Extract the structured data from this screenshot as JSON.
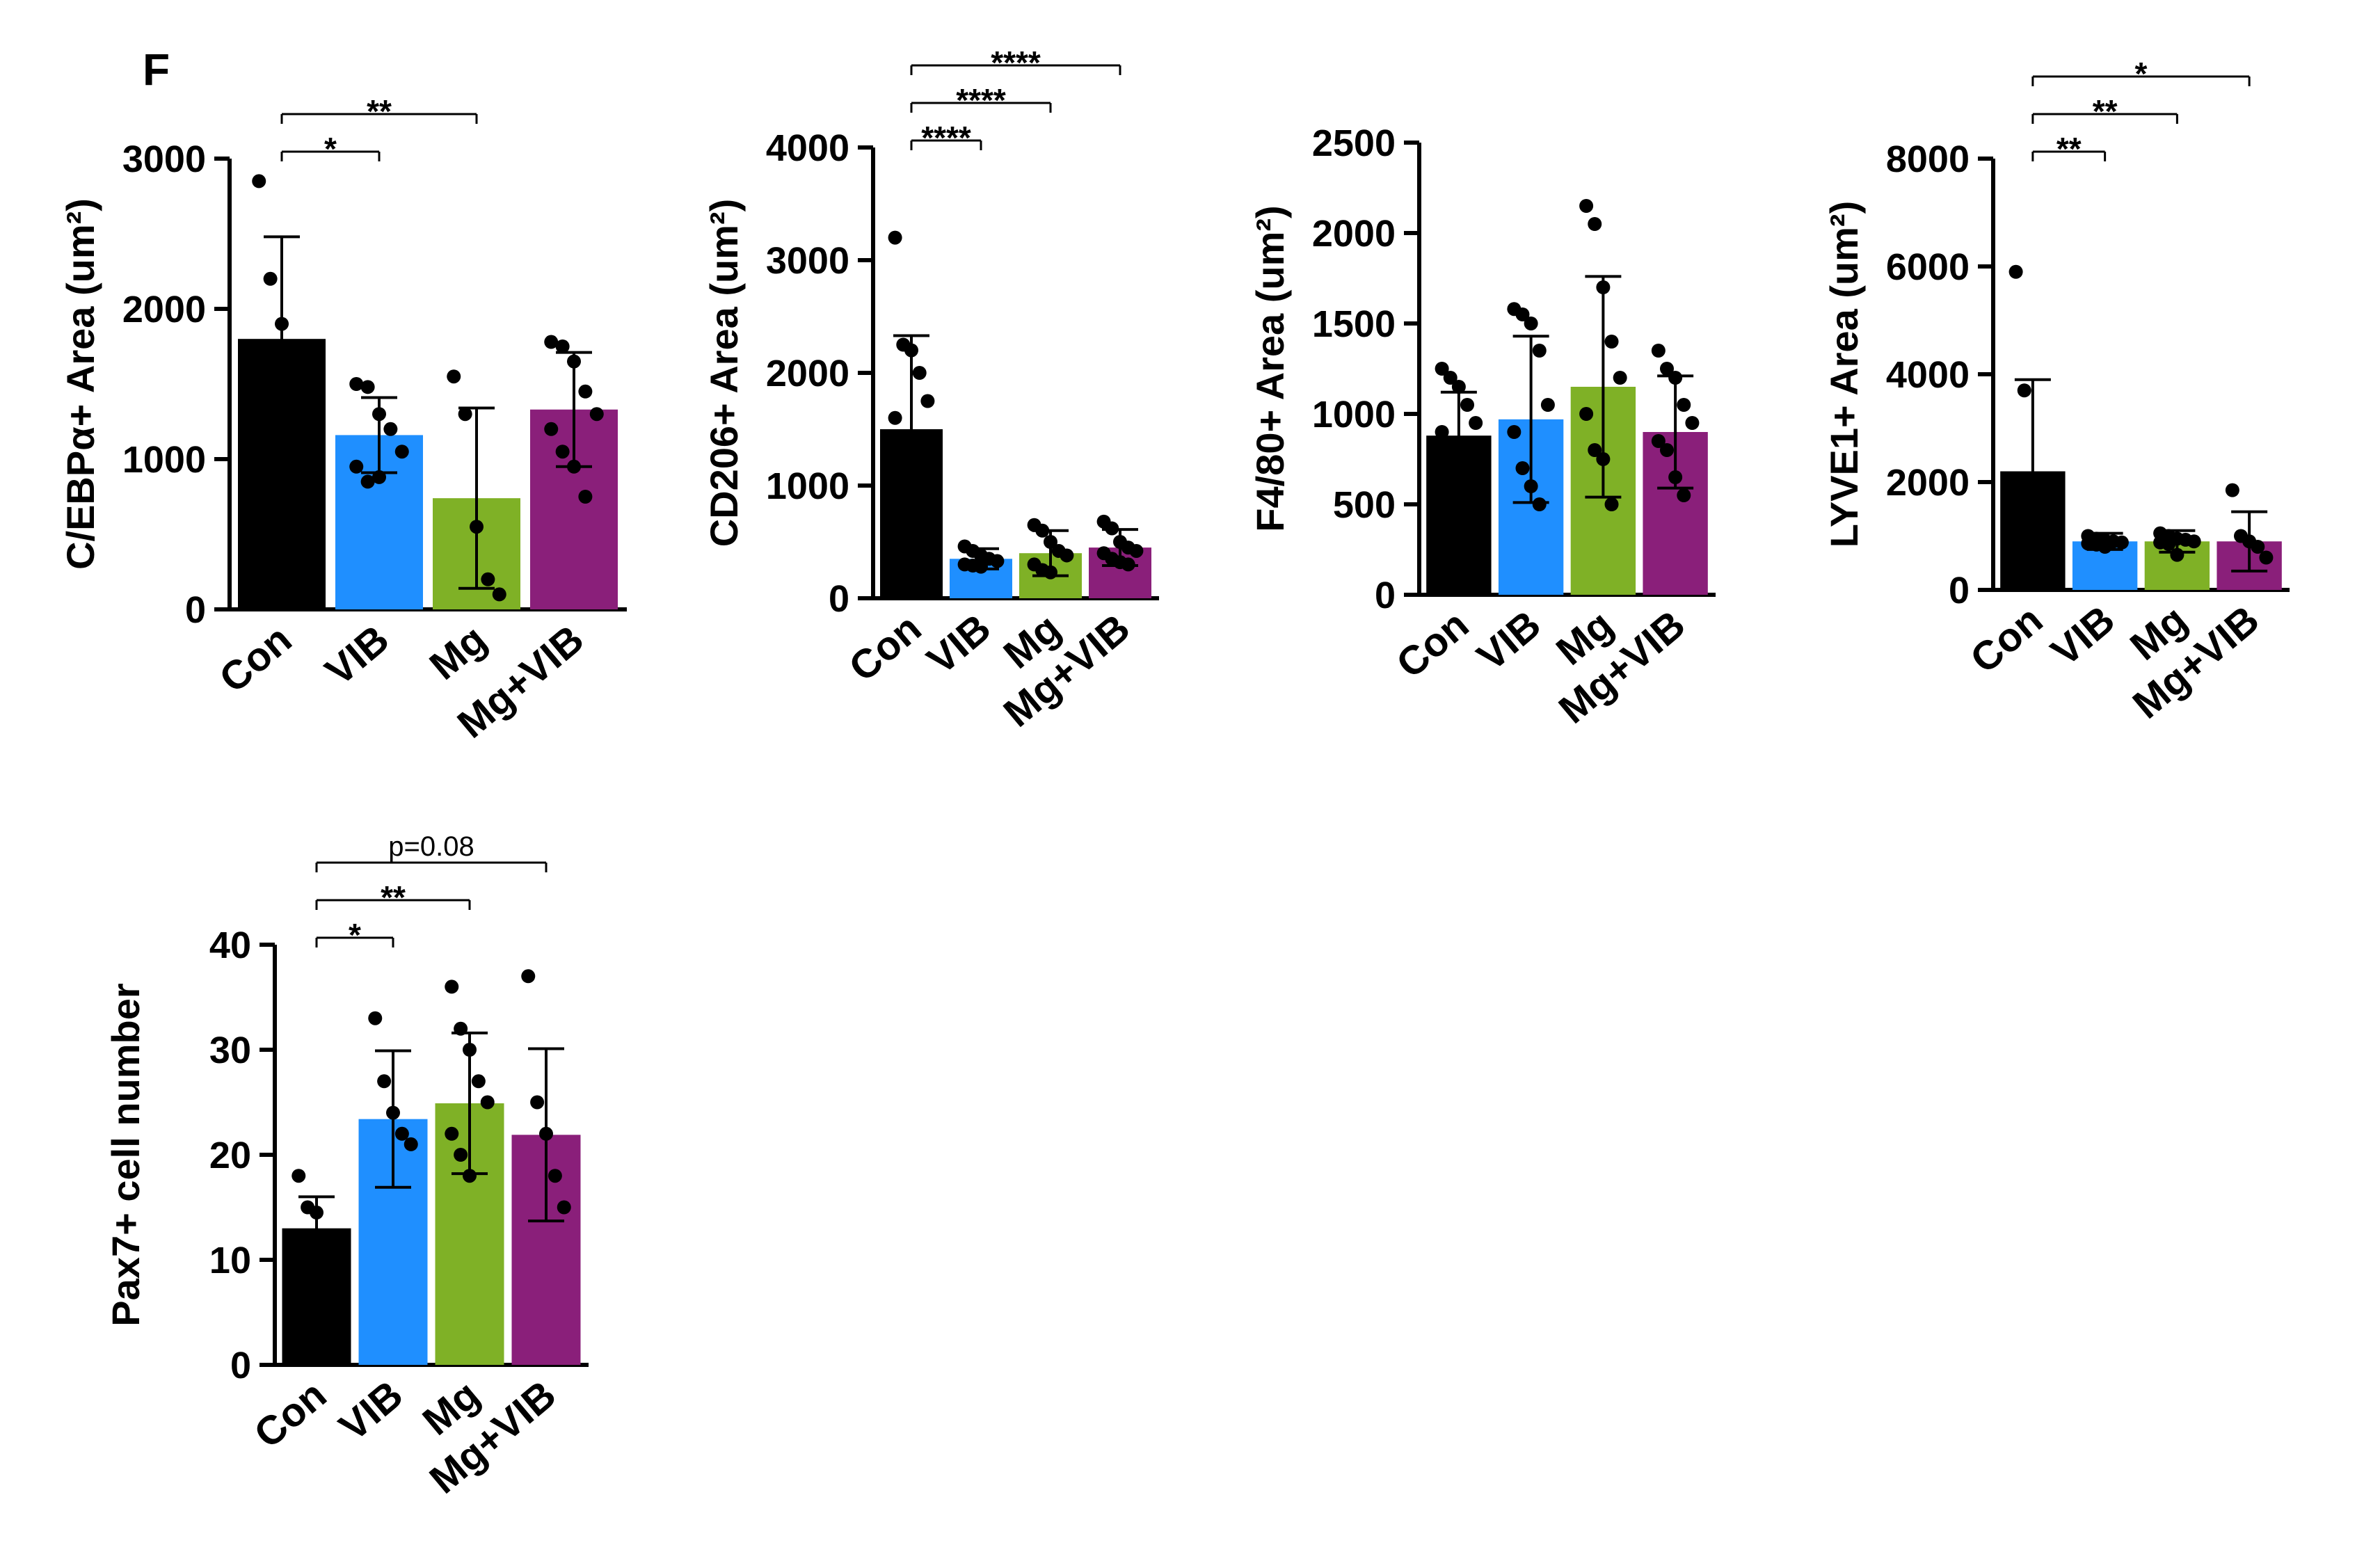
{
  "panel_label": "F",
  "colors": {
    "Con": "#000000",
    "VIB": "#1f8fff",
    "Mg": "#7fb126",
    "Mg+VIB": "#8a1f7a"
  },
  "chart_data": [
    {
      "type": "bar",
      "categories": [
        "Con",
        "VIB",
        "Mg",
        "Mg+VIB"
      ],
      "values": [
        1800,
        1160,
        740,
        1330
      ],
      "sd": [
        680,
        250,
        600,
        380
      ],
      "points": [
        [
          2850,
          2200,
          1900,
          1700,
          1400,
          800
        ],
        [
          1500,
          1480,
          1300,
          1200,
          1050,
          950,
          850,
          880
        ],
        [
          1550,
          1300,
          550,
          200,
          100
        ],
        [
          1780,
          1750,
          1650,
          1450,
          1300,
          1200,
          1050,
          950,
          750
        ]
      ],
      "ylabel": "C/EBPα+ Area (um²)",
      "ylim": [
        0,
        3000
      ],
      "yticks": [
        "0",
        "1000",
        "2000",
        "3000"
      ],
      "comparisons": [
        {
          "from": 0,
          "to": 1,
          "label": "*"
        },
        {
          "from": 0,
          "to": 2,
          "label": "**"
        }
      ]
    },
    {
      "type": "bar",
      "categories": [
        "Con",
        "VIB",
        "Mg",
        "Mg+VIB"
      ],
      "values": [
        1500,
        350,
        400,
        450
      ],
      "sd": [
        830,
        90,
        200,
        160
      ],
      "points": [
        [
          3200,
          2250,
          2200,
          2000,
          1750,
          1600
        ],
        [
          460,
          420,
          380,
          350,
          330,
          300,
          290,
          280
        ],
        [
          650,
          600,
          500,
          420,
          380,
          300,
          250,
          230
        ],
        [
          680,
          620,
          500,
          450,
          420,
          400,
          350,
          320,
          300
        ]
      ],
      "ylabel": "CD206+ Area (um²)",
      "ylim": [
        0,
        4000
      ],
      "yticks": [
        "0",
        "1000",
        "2000",
        "3000",
        "4000"
      ],
      "comparisons": [
        {
          "from": 0,
          "to": 1,
          "label": "****"
        },
        {
          "from": 0,
          "to": 2,
          "label": "****"
        },
        {
          "from": 0,
          "to": 3,
          "label": "****"
        }
      ]
    },
    {
      "type": "bar",
      "categories": [
        "Con",
        "VIB",
        "Mg",
        "Mg+VIB"
      ],
      "values": [
        880,
        970,
        1150,
        900
      ],
      "sd": [
        240,
        460,
        610,
        310
      ],
      "points": [
        [
          1250,
          1200,
          1150,
          1050,
          950,
          900
        ],
        [
          1580,
          1550,
          1500,
          1350,
          1050,
          900,
          700,
          600,
          500
        ],
        [
          2150,
          2050,
          1700,
          1400,
          1200,
          1000,
          800,
          750,
          500
        ],
        [
          1350,
          1250,
          1200,
          1050,
          950,
          850,
          800,
          650,
          550
        ]
      ],
      "ylabel": "F4/80+ Area (um²)",
      "ylim": [
        0,
        2500
      ],
      "yticks": [
        "0",
        "500",
        "1000",
        "1500",
        "2000",
        "2500"
      ],
      "comparisons": []
    },
    {
      "type": "bar",
      "categories": [
        "Con",
        "VIB",
        "Mg",
        "Mg+VIB"
      ],
      "values": [
        2200,
        900,
        900,
        900
      ],
      "sd": [
        1700,
        150,
        200,
        550
      ],
      "points": [
        [
          5900,
          3700
        ],
        [
          1000,
          950,
          920,
          900,
          880,
          860,
          840,
          800
        ],
        [
          1050,
          1000,
          950,
          930,
          900,
          880,
          850,
          650
        ],
        [
          1850,
          1000,
          900,
          800,
          600
        ]
      ],
      "ylabel": "LYVE1+ Area (um²)",
      "ylim": [
        0,
        8000
      ],
      "yticks": [
        "0",
        "2000",
        "4000",
        "6000",
        "8000"
      ],
      "comparisons": [
        {
          "from": 0,
          "to": 1,
          "label": "**"
        },
        {
          "from": 0,
          "to": 2,
          "label": "**"
        },
        {
          "from": 0,
          "to": 3,
          "label": "*"
        }
      ]
    },
    {
      "type": "bar",
      "categories": [
        "Con",
        "VIB",
        "Mg",
        "Mg+VIB"
      ],
      "values": [
        13,
        23.4,
        24.9,
        21.9
      ],
      "sd": [
        3,
        6.5,
        6.7,
        8.2
      ],
      "points": [
        [
          18,
          15,
          14.5
        ],
        [
          33,
          27,
          24,
          22,
          21
        ],
        [
          36,
          32,
          30,
          27,
          25,
          22,
          20,
          18
        ],
        [
          37,
          25,
          22,
          18,
          15
        ]
      ],
      "ylabel": "Pax7+ cell number",
      "ylim": [
        0,
        40
      ],
      "yticks": [
        "0",
        "10",
        "20",
        "30",
        "40"
      ],
      "comparisons": [
        {
          "from": 0,
          "to": 1,
          "label": "*"
        },
        {
          "from": 0,
          "to": 2,
          "label": "**"
        },
        {
          "from": 0,
          "to": 3,
          "label": "p=0.08"
        }
      ]
    }
  ]
}
